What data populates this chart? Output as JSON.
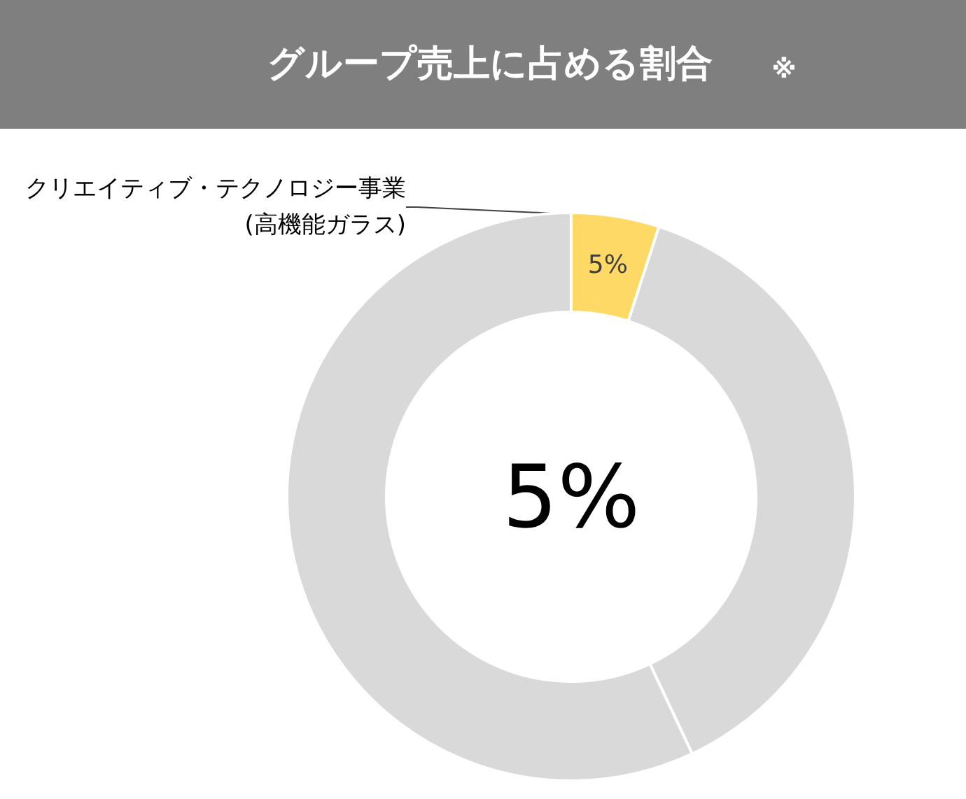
{
  "chart_data": {
    "type": "donut",
    "title": "グループ売上に占める割合",
    "categories": [
      "クリエイティブ・テクノロジー事業\n(高機能ガラス)",
      null,
      null
    ],
    "values": [
      5,
      38,
      57
    ],
    "colors": [
      "#ffd966",
      "#d9d9d9",
      "#d9d9d9"
    ],
    "value_labels": [
      "5%",
      null,
      null
    ],
    "annotations": [
      "5%",
      "※"
    ],
    "legend": false
  }
}
